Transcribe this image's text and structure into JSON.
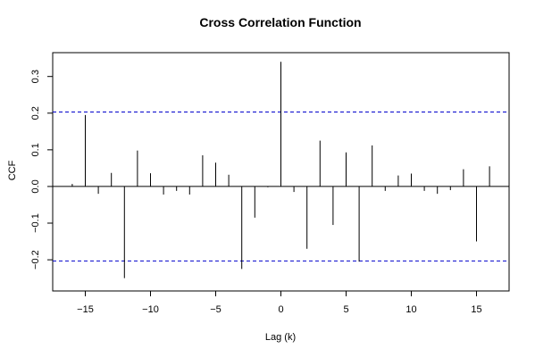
{
  "chart_data": {
    "type": "bar",
    "title": "Cross Correlation Function",
    "xlabel": "Lag (k)",
    "ylabel": "CCF",
    "xlim": [
      -17.5,
      17.5
    ],
    "ylim": [
      -0.285,
      0.365
    ],
    "x_ticks": [
      -15,
      -10,
      -5,
      0,
      5,
      10,
      15
    ],
    "x_tick_labels": [
      "−15",
      "−10",
      "−5",
      "0",
      "5",
      "10",
      "15"
    ],
    "y_ticks": [
      -0.2,
      -0.1,
      0.0,
      0.1,
      0.2,
      0.3
    ],
    "y_tick_labels": [
      "−0.2",
      "−0.1",
      "0.0",
      "0.1",
      "0.2",
      "0.3"
    ],
    "confidence_bound": 0.203,
    "lags": [
      -16,
      -15,
      -14,
      -13,
      -12,
      -11,
      -10,
      -9,
      -8,
      -7,
      -6,
      -5,
      -4,
      -3,
      -2,
      -1,
      0,
      1,
      2,
      3,
      4,
      5,
      6,
      7,
      8,
      9,
      10,
      11,
      12,
      13,
      14,
      15,
      16
    ],
    "values": [
      0.007,
      0.195,
      -0.02,
      0.037,
      -0.25,
      0.098,
      0.036,
      -0.022,
      -0.012,
      -0.022,
      0.085,
      0.065,
      0.032,
      -0.225,
      -0.085,
      -0.002,
      0.34,
      -0.015,
      -0.17,
      0.125,
      -0.105,
      0.093,
      -0.205,
      0.112,
      -0.012,
      0.03,
      0.035,
      -0.012,
      -0.02,
      -0.01,
      0.047,
      -0.15,
      0.055
    ],
    "colors": {
      "bars": "#000000",
      "zero_line": "#000000",
      "bound_line": "#0000cc",
      "frame": "#000000"
    }
  }
}
